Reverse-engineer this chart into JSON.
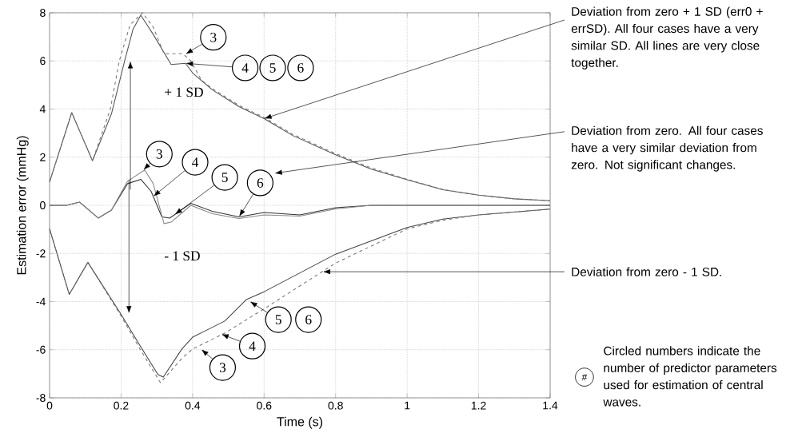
{
  "chart_data": {
    "type": "line",
    "xlabel": "Time (s)",
    "ylabel": "Estimation error (mmHg)",
    "xlim": [
      0,
      1.4
    ],
    "ylim": [
      -8,
      8
    ],
    "xticks": [
      0,
      0.2,
      0.4,
      0.6,
      0.8,
      1,
      1.2,
      1.4
    ],
    "yticks": [
      -8,
      -6,
      -4,
      -2,
      0,
      2,
      4,
      6,
      8
    ],
    "grid": true,
    "marker": "none",
    "series": [
      {
        "color": "#555555",
        "line_style": "solid",
        "x": [
          0,
          0.062,
          0.12,
          0.173,
          0.21,
          0.233,
          0.255,
          0.29,
          0.34,
          0.38,
          0.4,
          0.455,
          0.53,
          0.6,
          0.68,
          0.8,
          0.9,
          1.0,
          1.1,
          1.2,
          1.3,
          1.4
        ],
        "values": [
          0.97,
          3.85,
          1.85,
          3.8,
          6.0,
          7.3,
          7.9,
          7.1,
          5.85,
          5.9,
          5.5,
          4.8,
          4.1,
          3.6,
          2.9,
          2.1,
          1.5,
          1.06,
          0.65,
          0.42,
          0.27,
          0.19
        ]
      },
      {
        "color": "#777777",
        "line_style": "dashed",
        "x": [
          0,
          0.062,
          0.12,
          0.17,
          0.195,
          0.225,
          0.26,
          0.29,
          0.32,
          0.373,
          0.395,
          0.425,
          0.455,
          0.53,
          0.6,
          0.68,
          0.8,
          0.9,
          1.0,
          1.1,
          1.2,
          1.3,
          1.4
        ],
        "values": [
          0.97,
          3.85,
          1.85,
          4.0,
          6.0,
          7.5,
          8.0,
          7.4,
          6.3,
          6.3,
          6.0,
          5.2,
          4.85,
          4.15,
          3.65,
          2.95,
          2.15,
          1.55,
          1.08,
          0.66,
          0.42,
          0.27,
          0.19
        ]
      },
      {
        "color": "#333333",
        "line_style": "solid",
        "x": [
          0,
          0.047,
          0.084,
          0.136,
          0.173,
          0.218,
          0.255,
          0.284,
          0.314,
          0.336,
          0.395,
          0.455,
          0.53,
          0.6,
          0.7,
          0.8,
          0.9,
          1.0,
          1.2,
          1.4
        ],
        "values": [
          0,
          0,
          0.13,
          -0.53,
          -0.2,
          0.9,
          1.08,
          0.58,
          -0.48,
          -0.53,
          0.08,
          -0.25,
          -0.48,
          -0.3,
          -0.4,
          -0.1,
          0.0,
          0,
          0,
          0
        ]
      },
      {
        "color": "#888888",
        "line_style": "solid",
        "x": [
          0,
          0.047,
          0.084,
          0.136,
          0.173,
          0.218,
          0.266,
          0.29,
          0.32,
          0.34,
          0.395,
          0.455,
          0.53,
          0.6,
          0.7,
          0.8,
          0.9,
          1.0,
          1.2,
          1.4
        ],
        "values": [
          0,
          0,
          0.13,
          -0.53,
          -0.2,
          1.0,
          1.47,
          0.9,
          -0.76,
          -0.7,
          0.0,
          -0.35,
          -0.55,
          -0.4,
          -0.45,
          -0.15,
          0.0,
          0,
          0,
          0
        ]
      },
      {
        "color": "#444444",
        "line_style": "solid",
        "x": [
          0,
          0.055,
          0.107,
          0.2,
          0.25,
          0.303,
          0.318,
          0.37,
          0.4,
          0.49,
          0.55,
          0.6,
          0.8,
          1.0,
          1.1,
          1.2,
          1.4
        ],
        "values": [
          -0.98,
          -3.7,
          -2.37,
          -4.53,
          -5.76,
          -7.03,
          -7.14,
          -5.97,
          -5.48,
          -4.81,
          -3.92,
          -3.59,
          -2.03,
          -0.92,
          -0.57,
          -0.4,
          -0.16
        ]
      },
      {
        "color": "#777777",
        "line_style": "dashed",
        "x": [
          0,
          0.055,
          0.107,
          0.2,
          0.25,
          0.31,
          0.37,
          0.4,
          0.49,
          0.6,
          0.8,
          1.0,
          1.1,
          1.2,
          1.4
        ],
        "values": [
          -0.98,
          -3.7,
          -2.37,
          -4.6,
          -5.9,
          -7.37,
          -6.36,
          -5.97,
          -5.31,
          -4.3,
          -2.4,
          -0.98,
          -0.62,
          -0.4,
          -0.16
        ]
      }
    ],
    "annotations": [
      {
        "text": "3",
        "x": 0.38,
        "y": 6.28
      },
      {
        "text": "4",
        "x": 0.38,
        "y": 5.9
      },
      "5",
      "6",
      "+ 1 SD",
      "- 1 SD",
      {
        "text": "3",
        "x": 0.262,
        "y": 1.46
      },
      {
        "text": "4",
        "x": 0.29,
        "y": 0.368
      },
      {
        "text": "5",
        "x": 0.35,
        "y": -0.385
      },
      {
        "text": "6",
        "x": 0.53,
        "y": -0.48
      },
      {
        "text": "5",
        "x": 0.56,
        "y": -3.99
      },
      "6",
      {
        "text": "4",
        "x": 0.48,
        "y": -5.35
      },
      {
        "text": "3",
        "x": 0.424,
        "y": -5.98
      },
      {
        "text": "Deviation from zero + 1 SD (err0 + errSD). All four cases have a very similar SD. All lines are very close together.",
        "x": 0.6,
        "y": 3.6
      },
      "Deviation from zero. All four cases have a very similar deviation from zero. Not significant changes.",
      {
        "text": "Deviation from zero - 1 SD.",
        "x": 0.764,
        "y": -2.76
      },
      "#",
      "Circled numbers indicate the number of predictor parameters used for estimation of central waves."
    ]
  }
}
